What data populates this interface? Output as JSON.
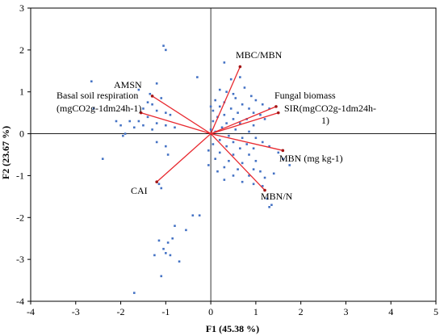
{
  "chart_data": {
    "type": "scatter",
    "title": "",
    "xlabel": "F1 (45.38 %)",
    "ylabel": "F2 (23.67 %)",
    "xlim": [
      -4,
      5
    ],
    "ylim": [
      -4,
      3
    ],
    "x_ticks": [
      "-4",
      "-3",
      "-2",
      "-1",
      "0",
      "1",
      "2",
      "3",
      "4",
      "5"
    ],
    "y_ticks": [
      "3",
      "2",
      "1",
      "0",
      "-1",
      "-2",
      "-3",
      "-4"
    ],
    "grid": false,
    "points_color": "#4472c4",
    "vector_color": "#e8292f",
    "vector_end_color": "#a31515",
    "points": [
      [
        -1.05,
        2.1
      ],
      [
        -1.0,
        2.0
      ],
      [
        -0.3,
        1.35
      ],
      [
        -2.65,
        1.25
      ],
      [
        -1.2,
        1.2
      ],
      [
        -1.6,
        1.05
      ],
      [
        -1.35,
        0.95
      ],
      [
        -1.1,
        0.85
      ],
      [
        -1.4,
        0.75
      ],
      [
        -1.3,
        0.7
      ],
      [
        -1.5,
        0.6
      ],
      [
        -1.2,
        0.55
      ],
      [
        -1.0,
        0.5
      ],
      [
        -0.9,
        0.45
      ],
      [
        -1.4,
        0.4
      ],
      [
        -1.6,
        0.3
      ],
      [
        -1.8,
        0.3
      ],
      [
        -1.5,
        0.2
      ],
      [
        -1.2,
        0.25
      ],
      [
        -1.0,
        0.2
      ],
      [
        -0.8,
        0.15
      ],
      [
        -1.7,
        0.15
      ],
      [
        -2.0,
        0.2
      ],
      [
        -1.9,
        0.0
      ],
      [
        -2.1,
        0.3
      ],
      [
        -1.3,
        0.1
      ],
      [
        -2.6,
        0.6
      ],
      [
        -2.4,
        -0.6
      ],
      [
        -1.95,
        -0.05
      ],
      [
        -1.2,
        -0.2
      ],
      [
        -1.0,
        -0.3
      ],
      [
        -0.95,
        -0.5
      ],
      [
        -1.1,
        -1.3
      ],
      [
        -1.15,
        -1.2
      ],
      [
        -0.4,
        -1.95
      ],
      [
        -0.25,
        -1.95
      ],
      [
        -0.55,
        -2.3
      ],
      [
        -0.8,
        -2.2
      ],
      [
        -0.85,
        -2.5
      ],
      [
        -0.95,
        -2.6
      ],
      [
        -1.15,
        -2.55
      ],
      [
        -1.05,
        -2.75
      ],
      [
        -1.0,
        -2.85
      ],
      [
        -0.9,
        -2.9
      ],
      [
        -1.25,
        -2.9
      ],
      [
        -0.7,
        -3.05
      ],
      [
        -1.1,
        -3.4
      ],
      [
        -1.7,
        -3.8
      ],
      [
        0.3,
        1.7
      ],
      [
        0.45,
        1.3
      ],
      [
        0.65,
        1.35
      ],
      [
        0.2,
        1.05
      ],
      [
        0.35,
        1.0
      ],
      [
        0.75,
        1.1
      ],
      [
        0.5,
        0.95
      ],
      [
        0.9,
        0.9
      ],
      [
        0.55,
        0.85
      ],
      [
        0.1,
        0.8
      ],
      [
        0.3,
        0.75
      ],
      [
        0.7,
        0.7
      ],
      [
        1.0,
        0.8
      ],
      [
        1.15,
        0.7
      ],
      [
        0.2,
        0.65
      ],
      [
        0.45,
        0.6
      ],
      [
        0.85,
        0.6
      ],
      [
        1.3,
        0.6
      ],
      [
        0.05,
        0.55
      ],
      [
        0.6,
        0.5
      ],
      [
        0.95,
        0.5
      ],
      [
        1.1,
        0.45
      ],
      [
        0.3,
        0.45
      ],
      [
        0.15,
        0.4
      ],
      [
        0.5,
        0.35
      ],
      [
        0.8,
        0.35
      ],
      [
        1.2,
        0.35
      ],
      [
        0.05,
        0.3
      ],
      [
        0.35,
        0.25
      ],
      [
        0.65,
        0.25
      ],
      [
        0.95,
        0.2
      ],
      [
        0.25,
        0.15
      ],
      [
        0.55,
        0.1
      ],
      [
        0.85,
        0.05
      ],
      [
        0.1,
        0.05
      ],
      [
        0.4,
        -0.05
      ],
      [
        0.7,
        -0.1
      ],
      [
        1.0,
        -0.1
      ],
      [
        0.2,
        -0.15
      ],
      [
        0.5,
        -0.2
      ],
      [
        0.8,
        -0.25
      ],
      [
        1.15,
        -0.2
      ],
      [
        0.05,
        -0.25
      ],
      [
        0.35,
        -0.3
      ],
      [
        0.65,
        -0.35
      ],
      [
        0.95,
        -0.35
      ],
      [
        1.3,
        -0.3
      ],
      [
        0.2,
        -0.45
      ],
      [
        0.5,
        -0.5
      ],
      [
        0.85,
        -0.5
      ],
      [
        1.5,
        -0.45
      ],
      [
        0.1,
        -0.6
      ],
      [
        0.4,
        -0.65
      ],
      [
        0.7,
        -0.7
      ],
      [
        1.0,
        -0.65
      ],
      [
        1.6,
        -0.6
      ],
      [
        1.75,
        -0.75
      ],
      [
        0.3,
        -0.8
      ],
      [
        0.6,
        -0.85
      ],
      [
        0.95,
        -0.85
      ],
      [
        1.1,
        -0.9
      ],
      [
        0.5,
        -1.0
      ],
      [
        0.85,
        -1.0
      ],
      [
        1.2,
        -1.05
      ],
      [
        0.7,
        -1.15
      ],
      [
        0.3,
        -1.1
      ],
      [
        1.4,
        -0.95
      ],
      [
        0.95,
        -1.2
      ],
      [
        1.15,
        -1.25
      ],
      [
        1.25,
        -1.55
      ],
      [
        1.3,
        -1.75
      ],
      [
        1.35,
        -1.7
      ],
      [
        0.15,
        -0.9
      ],
      [
        -0.05,
        -0.75
      ],
      [
        -0.05,
        -0.4
      ],
      [
        0.0,
        0.1
      ],
      [
        0.0,
        0.65
      ]
    ],
    "vectors": [
      {
        "label": "MBC/MBN",
        "x": 0.65,
        "y": 1.6
      },
      {
        "label": "Fungal biomass",
        "x": 1.45,
        "y": 0.65
      },
      {
        "label": "SIR(mgCO2g-1dm24h-1)",
        "x": 1.5,
        "y": 0.5
      },
      {
        "label": "MBN (mg kg-1)",
        "x": 1.6,
        "y": -0.4
      },
      {
        "label": "MBN/N",
        "x": 1.2,
        "y": -1.35
      },
      {
        "label": "CAI",
        "x": -1.2,
        "y": -1.15
      },
      {
        "label": "Basal soil respiration (mgCO2g-1dm24h-1)",
        "x": -1.55,
        "y": 0.5
      },
      {
        "label": "AMSN",
        "x": -1.3,
        "y": 0.9
      }
    ],
    "vector_labels": {
      "mbc_mbn": "MBC/MBN",
      "fungal": "Fungal biomass",
      "sir_1": "SIR(mgCO2g-1dm24h-",
      "sir_2": "1)",
      "mbn": "MBN (mg kg-1)",
      "mbn_n": "MBN/N",
      "cai": "CAI",
      "basal_1": "Basal soil respiration",
      "basal_2": "(mgCO2g-1dm24h-1)",
      "amsn": "AMSN"
    }
  }
}
